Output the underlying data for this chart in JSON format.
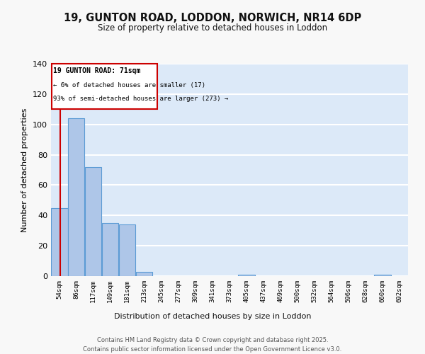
{
  "title_line1": "19, GUNTON ROAD, LODDON, NORWICH, NR14 6DP",
  "title_line2": "Size of property relative to detached houses in Loddon",
  "xlabel": "Distribution of detached houses by size in Loddon",
  "ylabel": "Number of detached properties",
  "categories": [
    "54sqm",
    "86sqm",
    "117sqm",
    "149sqm",
    "181sqm",
    "213sqm",
    "245sqm",
    "277sqm",
    "309sqm",
    "341sqm",
    "373sqm",
    "405sqm",
    "437sqm",
    "469sqm",
    "500sqm",
    "532sqm",
    "564sqm",
    "596sqm",
    "628sqm",
    "660sqm",
    "692sqm"
  ],
  "values": [
    45,
    104,
    72,
    35,
    34,
    3,
    0,
    0,
    0,
    0,
    0,
    1,
    0,
    0,
    0,
    0,
    0,
    0,
    0,
    1,
    0
  ],
  "bar_color": "#aec6e8",
  "bar_edge_color": "#5b9bd5",
  "background_color": "#dce9f8",
  "grid_color": "#ffffff",
  "property_size": 71,
  "bin_edges_sqm": [
    54,
    86,
    117,
    149,
    181,
    213,
    245,
    277,
    309,
    341,
    373,
    405,
    437,
    469,
    500,
    532,
    564,
    596,
    628,
    660,
    692,
    724
  ],
  "annotation_title": "19 GUNTON ROAD: 71sqm",
  "annotation_line2": "← 6% of detached houses are smaller (17)",
  "annotation_line3": "93% of semi-detached houses are larger (273) →",
  "annotation_box_color": "#ffffff",
  "annotation_border_color": "#cc0000",
  "vline_color": "#cc0000",
  "ylim": [
    0,
    140
  ],
  "yticks": [
    0,
    20,
    40,
    60,
    80,
    100,
    120,
    140
  ],
  "footer_line1": "Contains HM Land Registry data © Crown copyright and database right 2025.",
  "footer_line2": "Contains public sector information licensed under the Open Government Licence v3.0."
}
